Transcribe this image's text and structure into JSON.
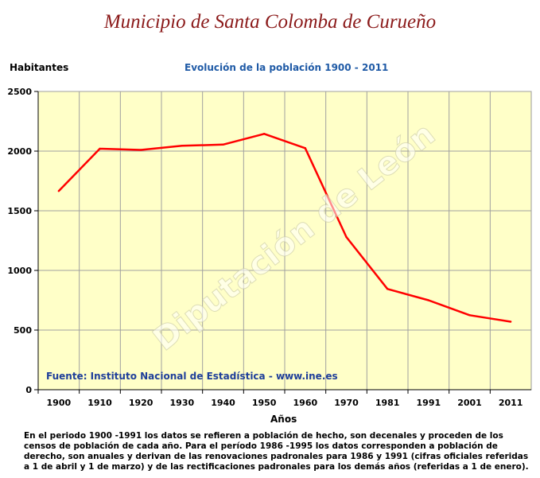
{
  "header": {
    "title": "Municipio de Santa Colomba de Curueño"
  },
  "chart_data": {
    "type": "line",
    "title": "Evolución de la población 1900 - 2011",
    "ylabel": "Habitantes",
    "xlabel": "Años",
    "categories": [
      "1900",
      "1910",
      "1920",
      "1930",
      "1940",
      "1950",
      "1960",
      "1970",
      "1981",
      "1991",
      "2001",
      "2011"
    ],
    "series": [
      {
        "values": [
          1665,
          2020,
          2010,
          2045,
          2055,
          2145,
          2025,
          1280,
          845,
          750,
          625,
          570
        ],
        "color": "#ff0000"
      }
    ],
    "ylim": [
      0,
      2500
    ],
    "yticks": [
      0,
      500,
      1000,
      1500,
      2000,
      2500
    ],
    "grid": true,
    "plot_background": "#ffffc8",
    "legend": "none"
  },
  "source_note": "Fuente: Instituto Nacional de Estadística - www.ine.es",
  "watermark": "Diputación de León",
  "footnote": "En el periodo 1900 -1991 los datos se refieren a población de hecho, son decenales y proceden de los censos de población de cada año. Para el período 1986 -1995 los datos corresponden a población de derecho, son anuales y derivan de las renovaciones padronales para 1986 y 1991 (cifras oficiales referidas a 1 de abril y 1 de marzo) y de las rectificaciones padronales para los demás años (referidas a 1 de enero)."
}
